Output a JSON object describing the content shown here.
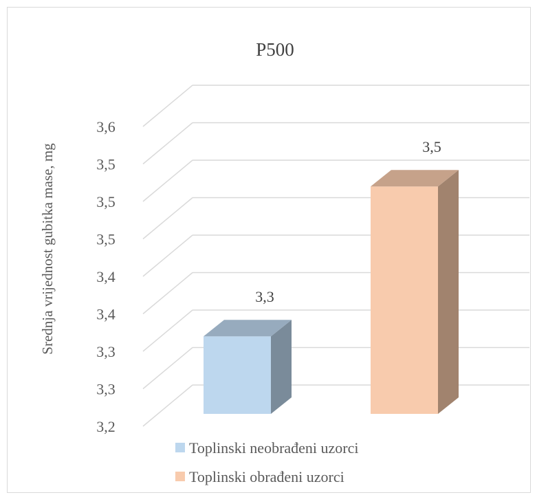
{
  "chart_data": {
    "type": "bar",
    "title": "P500",
    "ylabel": "Srednja vrijednost gubitka mase, mg",
    "xlabel": "",
    "ylim": [
      3.2,
      3.6
    ],
    "y_tick_values": [
      3.2,
      3.25,
      3.3,
      3.35,
      3.4,
      3.45,
      3.5,
      3.55,
      3.6
    ],
    "y_tick_labels": [
      "3,2",
      "3,3",
      "3,3",
      "3,4",
      "3,4",
      "3,5",
      "3,5",
      "3,5",
      "3,6"
    ],
    "grid": true,
    "style": "3d-column",
    "legend_position": "bottom",
    "series": [
      {
        "name": "Toplinski neobrađeni uzorci",
        "value": 3.32,
        "label": "3,3",
        "color": "#bdd7ee",
        "side_color": "#7a8b9a",
        "top_color": "#97abbe"
      },
      {
        "name": "Toplinski obrađeni uzorci",
        "value": 3.52,
        "label": "3,5",
        "color": "#f8cbad",
        "side_color": "#a1836e",
        "top_color": "#c6a28a"
      }
    ]
  }
}
